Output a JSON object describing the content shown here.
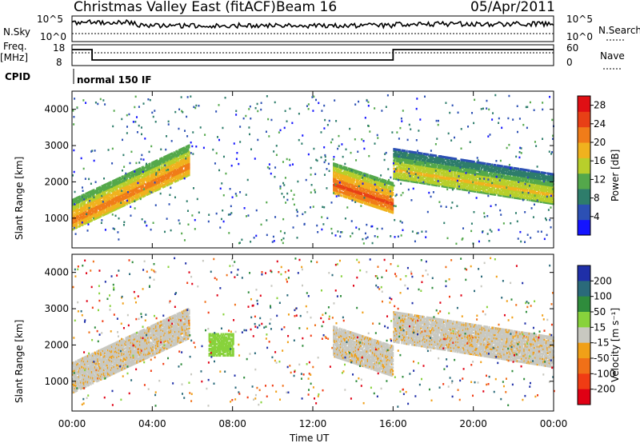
{
  "header": {
    "site": "Christmas Valley East (fitACF)",
    "beam": "Beam 16",
    "date": "05/Apr/2011"
  },
  "top_panels": {
    "nsky_label": "N.Sky",
    "nsky_ticks": [
      "10^5",
      "10^0"
    ],
    "nsearch_label": "N.Search",
    "nsearch_ticks": [
      "10^5",
      "10^0"
    ],
    "freq_label_1": "Freq.",
    "freq_label_2": "[MHz]",
    "freq_ticks": [
      "18",
      "8"
    ],
    "nave_label": "Nave",
    "nave_ticks": [
      "60",
      "0"
    ],
    "cpid_label": "CPID",
    "cpid_value": "normal 150 IF"
  },
  "chart_data": [
    {
      "type": "heatmap",
      "title": "",
      "xlabel": "Time UT",
      "ylabel": "Slant Range [km]",
      "xticks": [
        "00:00",
        "04:00",
        "08:00",
        "12:00",
        "16:00",
        "20:00",
        "00:00"
      ],
      "xlim": [
        0,
        24
      ],
      "yticks": [
        "1000",
        "2000",
        "3000",
        "4000"
      ],
      "ylim": [
        180,
        4500
      ],
      "colorbar": {
        "label": "Power [dB]",
        "ticks": [
          "4",
          "8",
          "12",
          "16",
          "20",
          "24",
          "28"
        ],
        "range": [
          0,
          30
        ],
        "colors": [
          "#1414ff",
          "#2c50b4",
          "#2e7d6b",
          "#54a84b",
          "#b8cf2b",
          "#f0b21e",
          "#f07c19",
          "#e84016",
          "#e00f14"
        ]
      },
      "features": [
        {
          "desc": "scatter band",
          "from_hour": 0.0,
          "to_hour": 5.8,
          "range_start_km": 1100,
          "range_end_km": 2600,
          "power_db": 22
        },
        {
          "desc": "scatter band",
          "from_hour": 13.0,
          "to_hour": 16.0,
          "range_start_km": 2100,
          "range_end_km": 1550,
          "power_db": 24
        },
        {
          "desc": "scatter band",
          "from_hour": 16.0,
          "to_hour": 24.0,
          "range_start_km": 2500,
          "range_end_km": 1800,
          "power_db": 18
        }
      ]
    },
    {
      "type": "heatmap",
      "title": "",
      "xlabel": "Time UT",
      "ylabel": "Slant Range [km]",
      "xticks": [
        "00:00",
        "04:00",
        "08:00",
        "12:00",
        "16:00",
        "20:00",
        "00:00"
      ],
      "xlim": [
        0,
        24
      ],
      "yticks": [
        "1000",
        "2000",
        "3000",
        "4000"
      ],
      "ylim": [
        180,
        4500
      ],
      "colorbar": {
        "label": "Velocity [m s⁻¹]",
        "ticks": [
          "200",
          "100",
          "50",
          "15",
          "-15",
          "-50",
          "-100",
          "-200"
        ],
        "colors": [
          "#1f2fa8",
          "#2a6a7a",
          "#2f8c3c",
          "#88d23c",
          "#c8c8c0",
          "#f0a018",
          "#f07018",
          "#f03c14",
          "#e00014"
        ]
      },
      "features": [
        {
          "desc": "ground scatter",
          "from_hour": 0.0,
          "to_hour": 16.0,
          "velocity_class": "-15 to 15"
        },
        {
          "desc": "positive velocity patch",
          "from_hour": 6.8,
          "to_hour": 8.0,
          "range_km": [
            1700,
            2300
          ],
          "velocity_class": "15 to 50"
        }
      ]
    }
  ]
}
